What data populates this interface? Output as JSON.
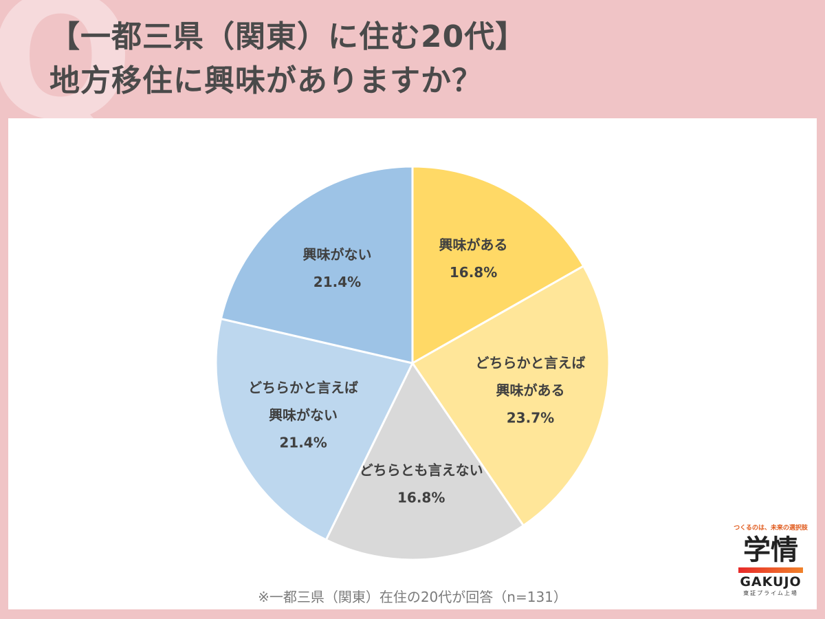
{
  "header": {
    "decor_letter": "Q",
    "title_line1": "【一都三県（関東）に住む20代】",
    "title_line2": "地方移住に興味がありますか？"
  },
  "chart_data": {
    "type": "pie",
    "title": "",
    "slices": [
      {
        "label": [
          "興味がある"
        ],
        "value": 16.8,
        "value_label": "16.8%",
        "color": "#ffd966"
      },
      {
        "label": [
          "どちらかと言えば",
          "興味がある"
        ],
        "value": 23.7,
        "value_label": "23.7%",
        "color": "#ffe699"
      },
      {
        "label": [
          "どちらとも言えない"
        ],
        "value": 16.8,
        "value_label": "16.8%",
        "color": "#d9d9d9"
      },
      {
        "label": [
          "どちらかと言えば",
          "興味がない"
        ],
        "value": 21.4,
        "value_label": "21.4%",
        "color": "#bdd7ee"
      },
      {
        "label": [
          "興味がない"
        ],
        "value": 21.4,
        "value_label": "21.4%",
        "color": "#9dc3e6"
      }
    ],
    "start_angle_deg": 0,
    "direction": "clockwise"
  },
  "footnote": "※一都三県（関東）在住の20代が回答（n=131）",
  "logo": {
    "tagline": "つくるのは、未来の選択肢",
    "mark": "学情",
    "name": "GAKUJO",
    "sub": "東証プライム上場"
  }
}
